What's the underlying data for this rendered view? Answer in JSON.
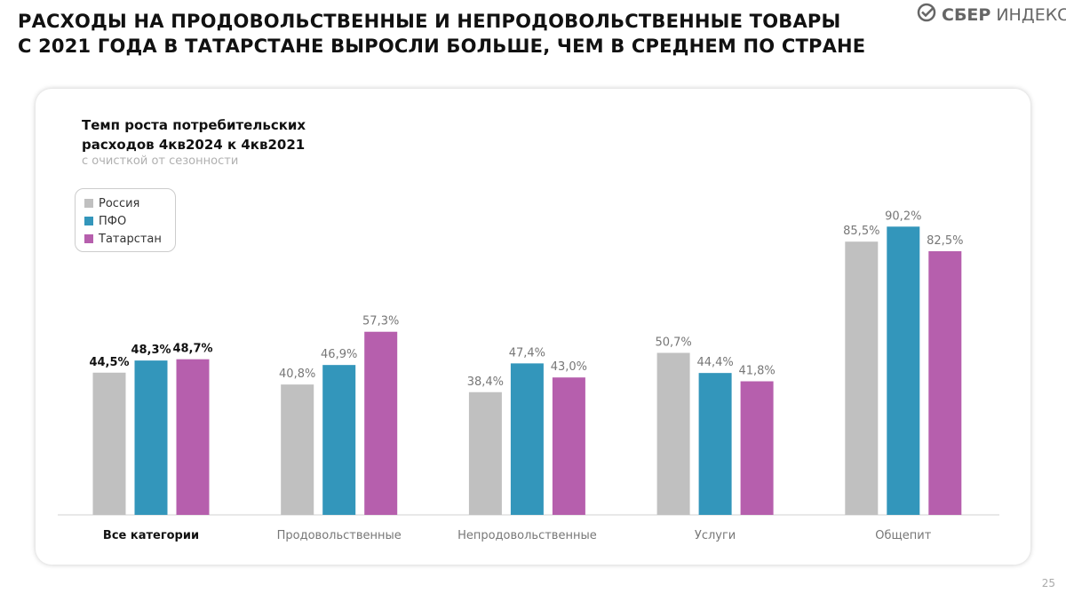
{
  "header": {
    "title_line1": "РАСХОДЫ НА ПРОДОВОЛЬСТВЕННЫЕ И НЕПРОДОВОЛЬСТВЕННЫЕ ТОВАРЫ",
    "title_line2": "С 2021 ГОДА В ТАТАРСТАНЕ ВЫРОСЛИ БОЛЬШЕ, ЧЕМ В СРЕДНЕМ ПО СТРАНЕ",
    "logo_bold": "СБЕР",
    "logo_light": "ИНДЕКС"
  },
  "page_number": "25",
  "chart_data": {
    "type": "bar",
    "title": "Темп роста потребительских расходов 4кв2024 к 4кв2021",
    "title_line1": "Темп роста потребительских",
    "title_line2": "расходов 4кв2024 к 4кв2021",
    "subtitle": "с очисткой от сезонности",
    "categories": [
      "Все категории",
      "Продовольственные",
      "Непродовольственные",
      "Услуги",
      "Общепит"
    ],
    "series": [
      {
        "name": "Россия",
        "color": "#c0c0c0",
        "values": [
          44.5,
          40.8,
          38.4,
          50.7,
          85.5
        ],
        "labels": [
          "44,5%",
          "40,8%",
          "38,4%",
          "50,7%",
          "85,5%"
        ]
      },
      {
        "name": "ПФО",
        "color": "#3396bb",
        "values": [
          48.3,
          46.9,
          47.4,
          44.4,
          90.2
        ],
        "labels": [
          "48,3%",
          "46,9%",
          "47,4%",
          "44,4%",
          "90,2%"
        ]
      },
      {
        "name": "Татарстан",
        "color": "#b65fad",
        "values": [
          48.7,
          57.3,
          43.0,
          41.8,
          82.5
        ],
        "labels": [
          "48,7%",
          "57,3%",
          "43,0%",
          "41,8%",
          "82,5%"
        ]
      }
    ],
    "ylim": [
      0,
      100
    ],
    "legend": "top-left",
    "grid": false
  }
}
